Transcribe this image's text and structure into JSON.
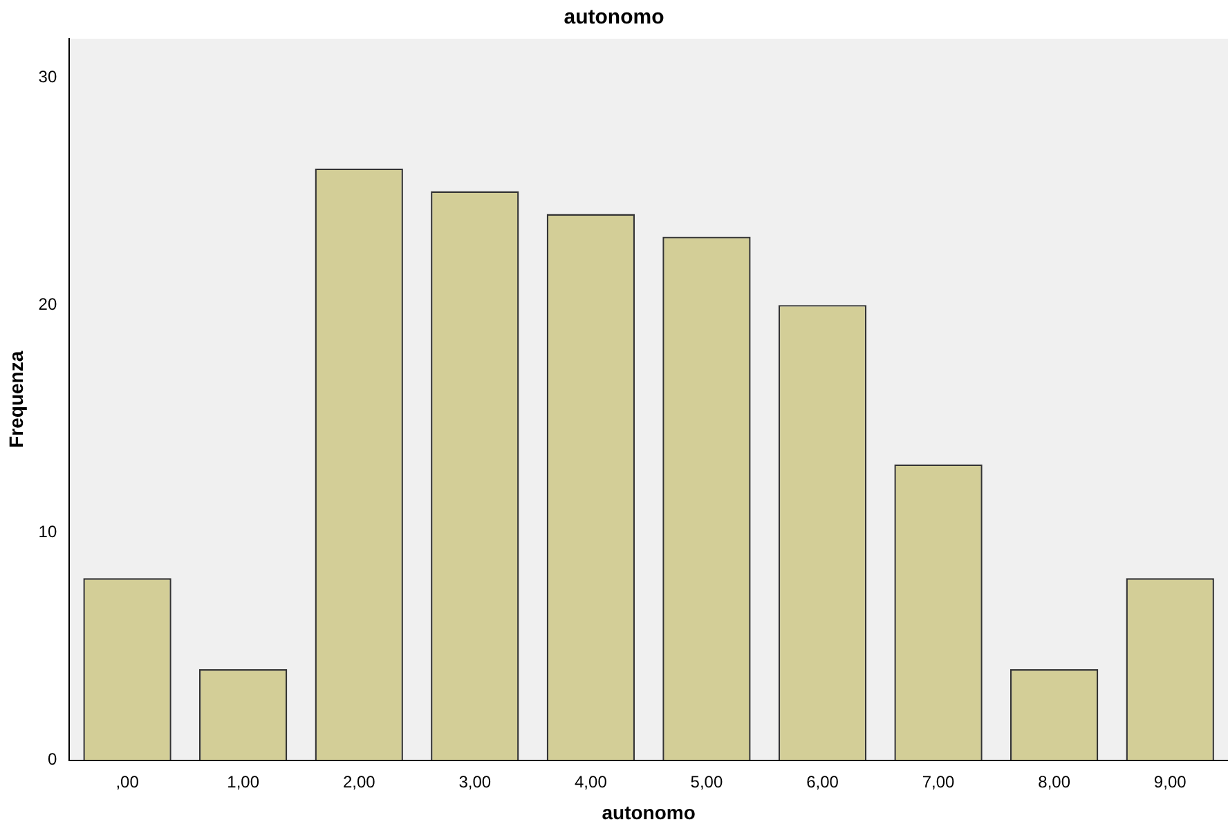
{
  "chart_data": {
    "type": "bar",
    "title": "autonomo",
    "xlabel": "autonomo",
    "ylabel": "Frequenza",
    "categories": [
      ",00",
      "1,00",
      "2,00",
      "3,00",
      "4,00",
      "5,00",
      "6,00",
      "7,00",
      "8,00",
      "9,00"
    ],
    "values": [
      8,
      4,
      26,
      25,
      24,
      23,
      20,
      13,
      4,
      8
    ],
    "color": "#d3ce97",
    "ylim": [
      0,
      31.7
    ],
    "yticks": [
      0,
      10,
      20,
      30
    ],
    "grid": false,
    "legend": false
  }
}
